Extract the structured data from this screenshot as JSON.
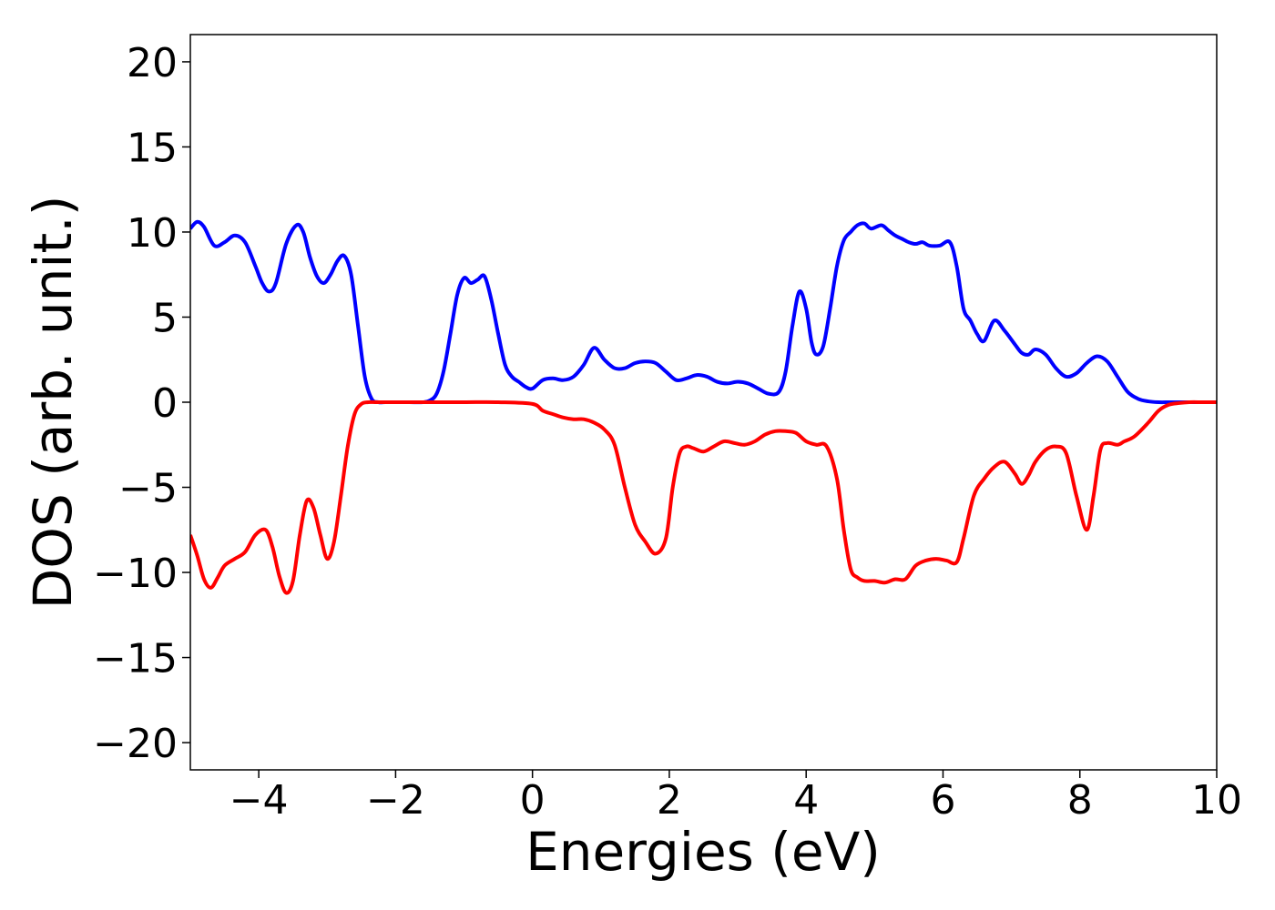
{
  "chart_data": {
    "type": "line",
    "title": "",
    "xlabel": "Energies (eV)",
    "ylabel": "DOS (arb. unit.)",
    "xlim": [
      -5,
      10
    ],
    "ylim": [
      -21.6,
      21.6
    ],
    "grid": false,
    "legend": "none",
    "x_ticks": [
      -4,
      -2,
      0,
      2,
      4,
      6,
      8,
      10
    ],
    "x_tick_labels": [
      "−4",
      "−2",
      "0",
      "2",
      "4",
      "6",
      "8",
      "10"
    ],
    "y_ticks": [
      -20,
      -15,
      -10,
      -5,
      0,
      5,
      10,
      15,
      20
    ],
    "y_tick_labels": [
      "−20",
      "−15",
      "−10",
      "−5",
      "0",
      "5",
      "10",
      "15",
      "20"
    ],
    "series": [
      {
        "color": "#0000ff",
        "x": [
          -5.0,
          -4.9,
          -4.8,
          -4.65,
          -4.5,
          -4.35,
          -4.2,
          -4.05,
          -3.95,
          -3.85,
          -3.75,
          -3.6,
          -3.45,
          -3.35,
          -3.25,
          -3.15,
          -3.05,
          -2.95,
          -2.85,
          -2.75,
          -2.65,
          -2.55,
          -2.45,
          -2.35,
          -2.25,
          -2.15,
          -2.0,
          -1.8,
          -1.6,
          -1.5,
          -1.4,
          -1.3,
          -1.2,
          -1.1,
          -1.0,
          -0.9,
          -0.8,
          -0.7,
          -0.6,
          -0.5,
          -0.4,
          -0.3,
          -0.2,
          -0.1,
          0.0,
          0.15,
          0.3,
          0.45,
          0.6,
          0.75,
          0.9,
          1.05,
          1.2,
          1.35,
          1.5,
          1.65,
          1.8,
          1.95,
          2.1,
          2.25,
          2.4,
          2.55,
          2.7,
          2.85,
          3.0,
          3.15,
          3.3,
          3.45,
          3.6,
          3.7,
          3.8,
          3.9,
          4.0,
          4.08,
          4.15,
          4.25,
          4.35,
          4.45,
          4.55,
          4.65,
          4.75,
          4.85,
          4.95,
          5.1,
          5.2,
          5.3,
          5.4,
          5.5,
          5.6,
          5.7,
          5.8,
          5.95,
          6.1,
          6.2,
          6.3,
          6.4,
          6.5,
          6.6,
          6.75,
          6.9,
          7.05,
          7.15,
          7.25,
          7.35,
          7.5,
          7.65,
          7.8,
          7.95,
          8.1,
          8.25,
          8.4,
          8.55,
          8.7,
          8.85,
          9.0,
          9.15,
          9.3,
          9.45,
          9.6,
          9.8,
          10.0
        ],
        "y": [
          10.2,
          10.6,
          10.3,
          9.2,
          9.4,
          9.8,
          9.4,
          8.0,
          7.0,
          6.5,
          7.0,
          9.3,
          10.4,
          10.0,
          8.5,
          7.4,
          7.0,
          7.5,
          8.3,
          8.6,
          7.5,
          4.5,
          1.5,
          0.2,
          0.0,
          0.0,
          0.0,
          0.0,
          0.0,
          0.1,
          0.5,
          1.8,
          4.0,
          6.3,
          7.3,
          7.0,
          7.2,
          7.4,
          6.0,
          4.0,
          2.2,
          1.5,
          1.2,
          0.9,
          0.8,
          1.3,
          1.4,
          1.3,
          1.5,
          2.2,
          3.2,
          2.5,
          2.0,
          2.0,
          2.3,
          2.4,
          2.3,
          1.8,
          1.3,
          1.4,
          1.6,
          1.5,
          1.2,
          1.1,
          1.2,
          1.1,
          0.8,
          0.5,
          0.6,
          1.8,
          4.5,
          6.5,
          5.5,
          3.5,
          2.8,
          3.3,
          5.5,
          8.0,
          9.5,
          10.0,
          10.4,
          10.5,
          10.2,
          10.4,
          10.1,
          9.8,
          9.6,
          9.4,
          9.3,
          9.4,
          9.2,
          9.2,
          9.4,
          8.0,
          5.5,
          4.8,
          4.0,
          3.6,
          4.8,
          4.2,
          3.4,
          2.9,
          2.8,
          3.1,
          2.8,
          2.0,
          1.5,
          1.7,
          2.3,
          2.7,
          2.4,
          1.5,
          0.6,
          0.2,
          0.05,
          0.0,
          0.0,
          0.0,
          0.0,
          0.0,
          0.0
        ]
      },
      {
        "color": "#ff0000",
        "x": [
          -5.0,
          -4.9,
          -4.8,
          -4.7,
          -4.6,
          -4.5,
          -4.35,
          -4.2,
          -4.05,
          -3.9,
          -3.8,
          -3.7,
          -3.6,
          -3.5,
          -3.4,
          -3.3,
          -3.2,
          -3.1,
          -3.0,
          -2.9,
          -2.8,
          -2.7,
          -2.6,
          -2.5,
          -2.4,
          -2.3,
          -2.2,
          -2.1,
          -2.0,
          -1.8,
          -1.5,
          -1.0,
          -0.5,
          0.0,
          0.15,
          0.3,
          0.45,
          0.6,
          0.75,
          0.9,
          1.05,
          1.2,
          1.35,
          1.5,
          1.65,
          1.8,
          1.95,
          2.05,
          2.15,
          2.25,
          2.35,
          2.5,
          2.65,
          2.8,
          2.95,
          3.1,
          3.25,
          3.4,
          3.55,
          3.7,
          3.85,
          4.0,
          4.15,
          4.3,
          4.45,
          4.55,
          4.65,
          4.75,
          4.85,
          5.0,
          5.15,
          5.3,
          5.45,
          5.6,
          5.75,
          5.9,
          6.05,
          6.2,
          6.3,
          6.45,
          6.6,
          6.75,
          6.9,
          7.05,
          7.15,
          7.25,
          7.35,
          7.5,
          7.65,
          7.8,
          7.95,
          8.1,
          8.2,
          8.3,
          8.4,
          8.55,
          8.65,
          8.8,
          9.0,
          9.15,
          9.3,
          9.45,
          9.6,
          9.8,
          10.0
        ],
        "y": [
          -7.8,
          -9.0,
          -10.4,
          -10.9,
          -10.3,
          -9.6,
          -9.2,
          -8.8,
          -7.8,
          -7.5,
          -8.5,
          -10.2,
          -11.2,
          -10.5,
          -7.8,
          -5.8,
          -6.2,
          -7.8,
          -9.2,
          -8.2,
          -5.5,
          -2.6,
          -0.7,
          -0.1,
          0.0,
          0.0,
          0.0,
          0.0,
          0.0,
          0.0,
          0.0,
          0.0,
          0.0,
          -0.1,
          -0.5,
          -0.7,
          -0.9,
          -1.0,
          -1.0,
          -1.2,
          -1.6,
          -2.5,
          -5.0,
          -7.2,
          -8.2,
          -8.9,
          -8.0,
          -5.0,
          -3.0,
          -2.6,
          -2.7,
          -2.9,
          -2.6,
          -2.3,
          -2.4,
          -2.5,
          -2.3,
          -1.9,
          -1.7,
          -1.7,
          -1.8,
          -2.3,
          -2.5,
          -2.6,
          -4.5,
          -7.5,
          -9.8,
          -10.3,
          -10.5,
          -10.5,
          -10.6,
          -10.4,
          -10.4,
          -9.6,
          -9.3,
          -9.2,
          -9.3,
          -9.4,
          -8.0,
          -5.5,
          -4.5,
          -3.8,
          -3.5,
          -4.2,
          -4.8,
          -4.3,
          -3.5,
          -2.8,
          -2.6,
          -3.0,
          -5.5,
          -7.5,
          -5.5,
          -2.8,
          -2.4,
          -2.5,
          -2.3,
          -2.0,
          -1.2,
          -0.5,
          -0.15,
          -0.05,
          0.0,
          0.0,
          0.0
        ]
      }
    ]
  }
}
